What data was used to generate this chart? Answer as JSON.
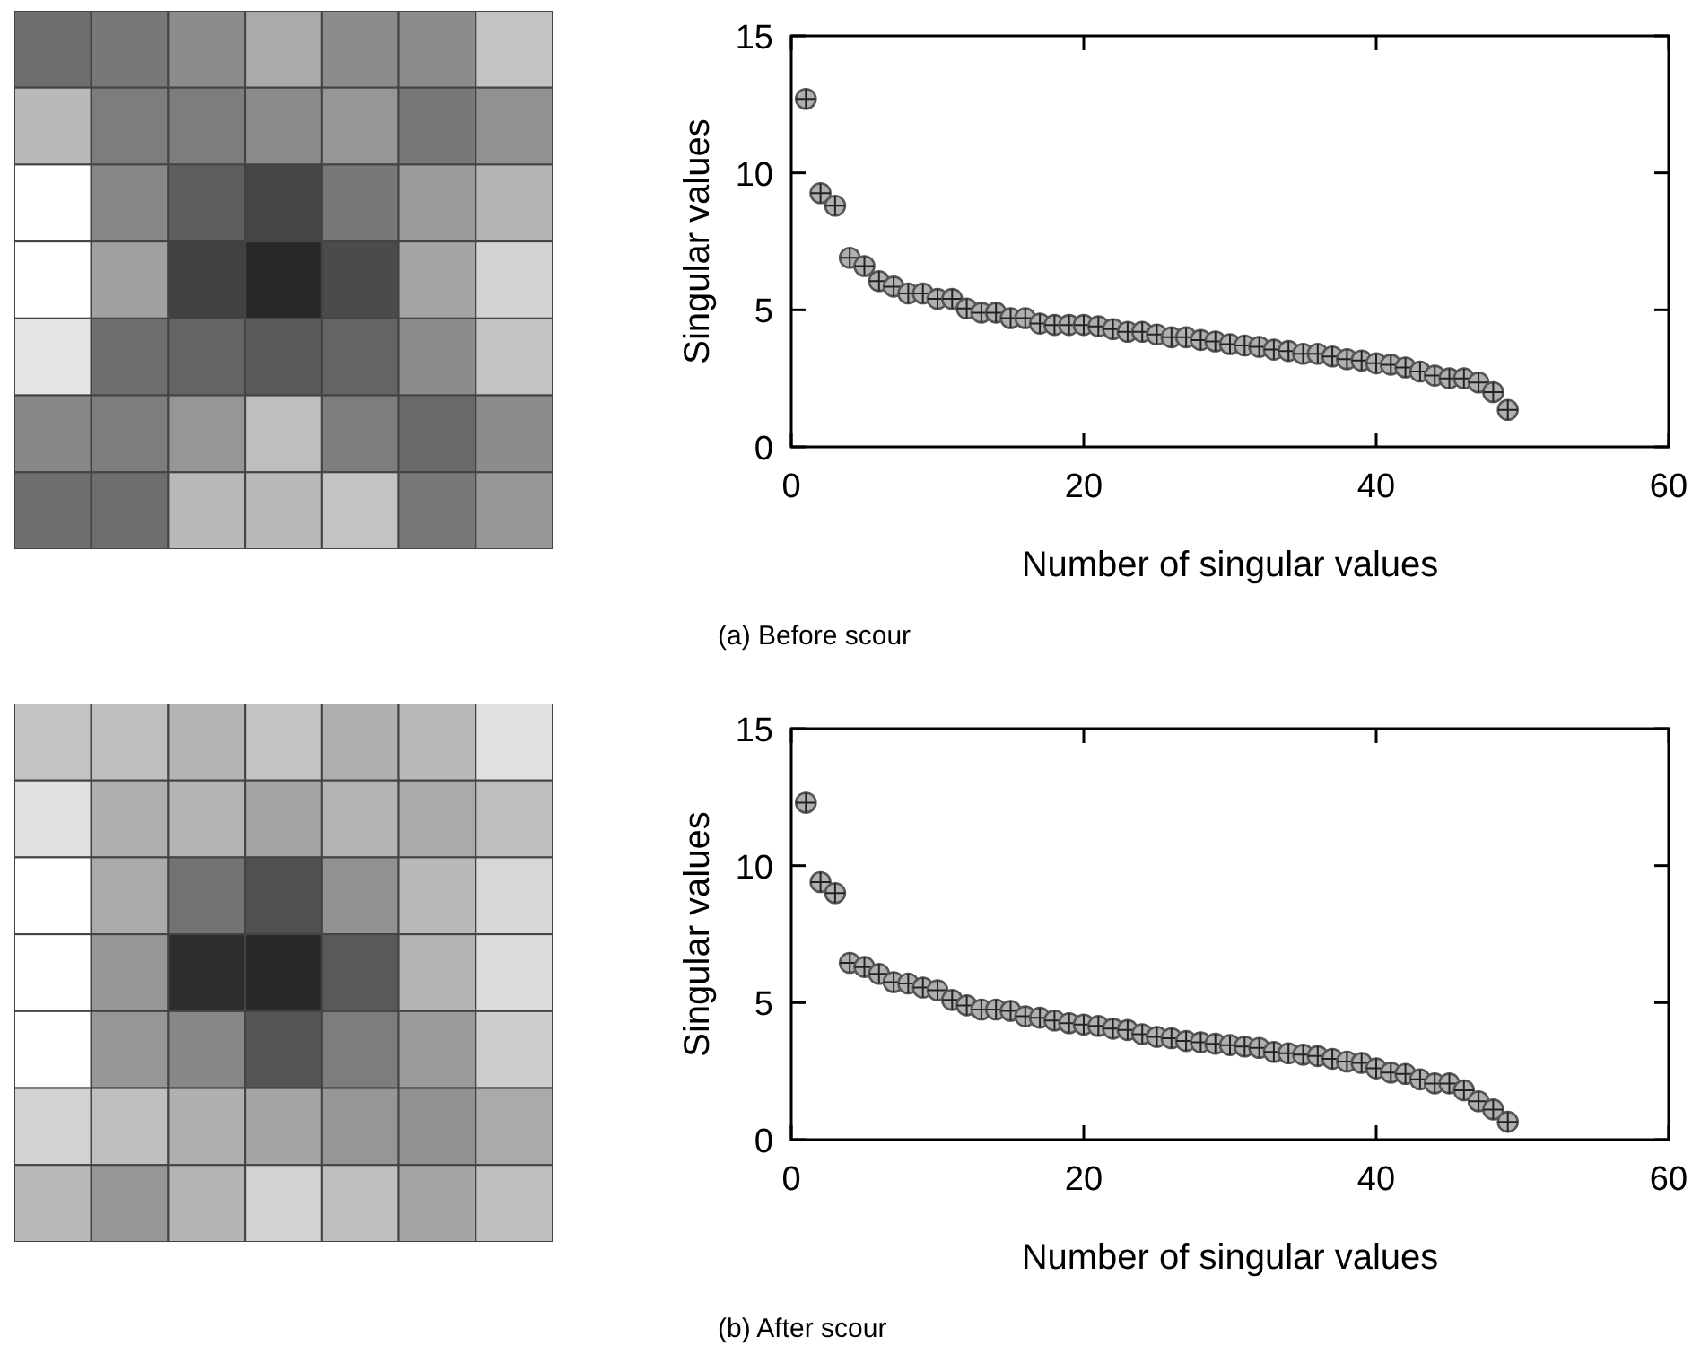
{
  "chart_data": [
    {
      "type": "scatter",
      "xlabel": "Number of singular values",
      "ylabel": "Singular values",
      "xlim": [
        0,
        60
      ],
      "ylim": [
        0,
        15
      ],
      "xticks": [
        0,
        20,
        40,
        60
      ],
      "yticks": [
        0,
        5,
        10,
        15
      ],
      "marker": "circle",
      "grid": false,
      "annotations": [
        "(a) Before scour"
      ],
      "x": [
        1,
        2,
        3,
        4,
        5,
        6,
        7,
        8,
        9,
        10,
        11,
        12,
        13,
        14,
        15,
        16,
        17,
        18,
        19,
        20,
        21,
        22,
        23,
        24,
        25,
        26,
        27,
        28,
        29,
        30,
        31,
        32,
        33,
        34,
        35,
        36,
        37,
        38,
        39,
        40,
        41,
        42,
        43,
        44,
        45,
        46,
        47,
        48,
        49
      ],
      "series": [
        {
          "color": "#555555",
          "values": [
            12.7,
            9.26,
            8.8,
            6.9,
            6.6,
            6.05,
            5.85,
            5.6,
            5.6,
            5.4,
            5.4,
            5.05,
            4.9,
            4.9,
            4.7,
            4.7,
            4.5,
            4.45,
            4.45,
            4.45,
            4.4,
            4.3,
            4.2,
            4.2,
            4.1,
            4.0,
            4.0,
            3.9,
            3.85,
            3.75,
            3.7,
            3.65,
            3.55,
            3.5,
            3.4,
            3.4,
            3.3,
            3.2,
            3.15,
            3.05,
            3.0,
            2.9,
            2.75,
            2.6,
            2.5,
            2.5,
            2.35,
            2.0,
            1.35
          ]
        }
      ]
    },
    {
      "type": "scatter",
      "xlabel": "Number of singular values",
      "ylabel": "Singular values",
      "xlim": [
        0,
        60
      ],
      "ylim": [
        0,
        15
      ],
      "xticks": [
        0,
        20,
        40,
        60
      ],
      "yticks": [
        0,
        5,
        10,
        15
      ],
      "marker": "circle",
      "grid": false,
      "annotations": [
        "(b) After scour"
      ],
      "x": [
        1,
        2,
        3,
        4,
        5,
        6,
        7,
        8,
        9,
        10,
        11,
        12,
        13,
        14,
        15,
        16,
        17,
        18,
        19,
        20,
        21,
        22,
        23,
        24,
        25,
        26,
        27,
        28,
        29,
        30,
        31,
        32,
        33,
        34,
        35,
        36,
        37,
        38,
        39,
        40,
        41,
        42,
        43,
        44,
        45,
        46,
        47,
        48,
        49
      ],
      "series": [
        {
          "color": "#555555",
          "values": [
            12.3,
            9.4,
            9.0,
            6.45,
            6.3,
            6.05,
            5.75,
            5.7,
            5.55,
            5.45,
            5.1,
            4.9,
            4.75,
            4.75,
            4.7,
            4.5,
            4.45,
            4.35,
            4.25,
            4.2,
            4.15,
            4.05,
            4.0,
            3.85,
            3.75,
            3.7,
            3.6,
            3.55,
            3.5,
            3.45,
            3.4,
            3.35,
            3.2,
            3.15,
            3.1,
            3.05,
            2.95,
            2.85,
            2.8,
            2.6,
            2.45,
            2.4,
            2.2,
            2.05,
            2.05,
            1.8,
            1.4,
            1.1,
            0.65
          ]
        }
      ]
    }
  ]
}
